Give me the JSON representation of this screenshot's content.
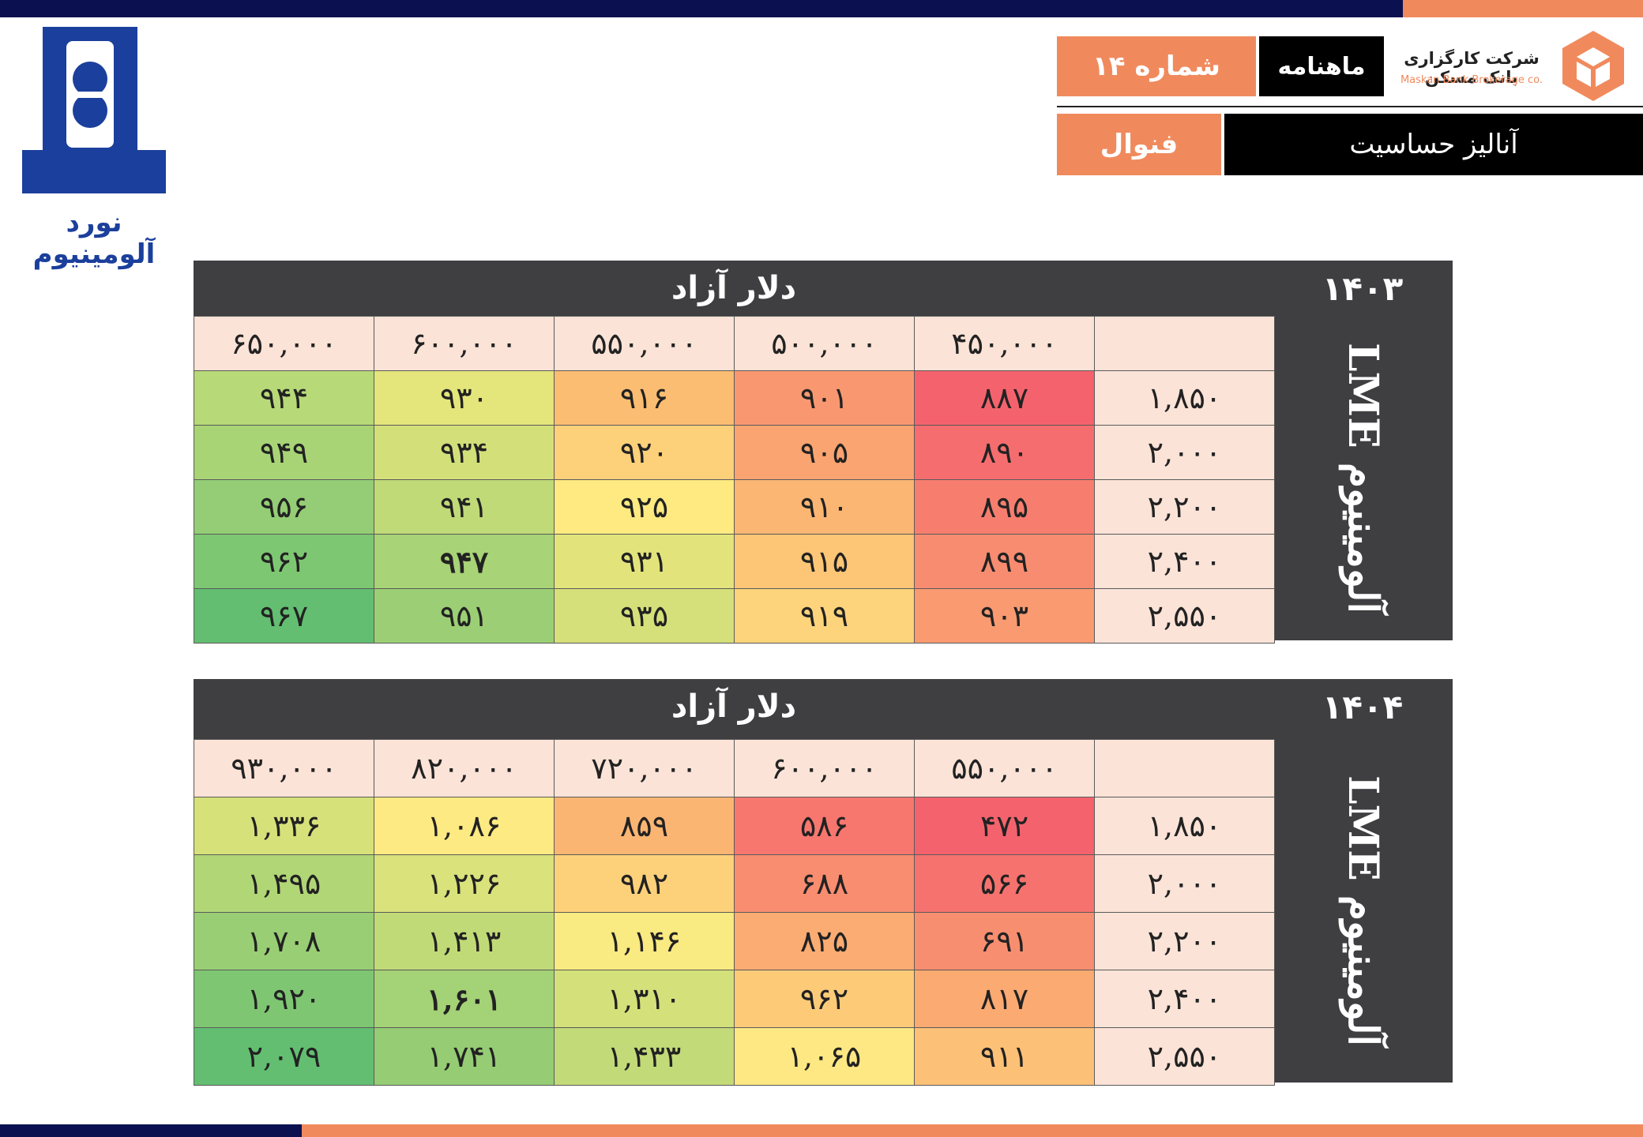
{
  "header": {
    "issue_label": "شماره ۱۴",
    "monthly_label": "ماهنامه",
    "broker_name_fa": "شرکت کارگزاری بانک مسکن",
    "broker_name_en": "Maskan Bank Brokerage co.",
    "symbol_label": "فنوال",
    "title": "آنالیز حساسیت"
  },
  "company": {
    "logo_text": "نورد آلومینیوم"
  },
  "colors": {
    "navy": "#0b1150",
    "orange": "#f08a5d",
    "panel": "#3f3e40",
    "header_cell": "#fbe3d7"
  },
  "tables": [
    {
      "year": "۱۴۰۳",
      "header": "دلار آزاد",
      "side_label": "آلومینیوم LME",
      "columns": [
        "۴۵۰,۰۰۰",
        "۵۰۰,۰۰۰",
        "۵۵۰,۰۰۰",
        "۶۰۰,۰۰۰",
        "۶۵۰,۰۰۰"
      ],
      "rows": [
        {
          "label": "۱,۸۵۰",
          "cells": [
            "۸۸۷",
            "۹۰۱",
            "۹۱۶",
            "۹۳۰",
            "۹۴۴"
          ],
          "colors": [
            "#f4636d",
            "#f99870",
            "#fbbd72",
            "#e4e57a",
            "#b7d977"
          ]
        },
        {
          "label": "۲,۰۰۰",
          "cells": [
            "۸۹۰",
            "۹۰۵",
            "۹۲۰",
            "۹۳۴",
            "۹۴۹"
          ],
          "colors": [
            "#f56d6e",
            "#faa471",
            "#fdd07a",
            "#d3e07a",
            "#a8d476"
          ]
        },
        {
          "label": "۲,۲۰۰",
          "cells": [
            "۸۹۵",
            "۹۱۰",
            "۹۲۵",
            "۹۴۱",
            "۹۵۶"
          ],
          "colors": [
            "#f77e6f",
            "#fbb673",
            "#feea81",
            "#c0da78",
            "#94cd75"
          ]
        },
        {
          "label": "۲,۴۰۰",
          "cells": [
            "۸۹۹",
            "۹۱۵",
            "۹۳۱",
            "۹۴۷",
            "۹۶۲"
          ],
          "colors": [
            "#f88c70",
            "#fcc676",
            "#e2e47b",
            "#a8d376",
            "#7ec772"
          ]
        },
        {
          "label": "۲,۵۵۰",
          "cells": [
            "۹۰۳",
            "۹۱۹",
            "۹۳۵",
            "۹۵۱",
            "۹۶۷"
          ],
          "colors": [
            "#f99a71",
            "#fdd47b",
            "#d5e07a",
            "#9ccf75",
            "#63be71"
          ]
        }
      ],
      "bold": [
        [
          3,
          3
        ]
      ]
    },
    {
      "year": "۱۴۰۴",
      "header": "دلار آزاد",
      "side_label": "آلومینیوم LME",
      "columns": [
        "۵۵۰,۰۰۰",
        "۶۰۰,۰۰۰",
        "۷۲۰,۰۰۰",
        "۸۲۰,۰۰۰",
        "۹۳۰,۰۰۰"
      ],
      "rows": [
        {
          "label": "۱,۸۵۰",
          "cells": [
            "۴۷۲",
            "۵۸۶",
            "۸۵۹",
            "۱,۰۸۶",
            "۱,۳۳۶"
          ],
          "colors": [
            "#f4636d",
            "#f7776f",
            "#fbb573",
            "#feea83",
            "#d7e17a"
          ]
        },
        {
          "label": "۲,۰۰۰",
          "cells": [
            "۵۶۶",
            "۶۸۸",
            "۹۸۲",
            "۱,۲۲۶",
            "۱,۴۹۵"
          ],
          "colors": [
            "#f6726e",
            "#f98d70",
            "#fdd17a",
            "#d9e27b",
            "#b1d676"
          ]
        },
        {
          "label": "۲,۲۰۰",
          "cells": [
            "۶۹۱",
            "۸۲۵",
            "۱,۱۴۶",
            "۱,۴۱۳",
            "۱,۷۰۸"
          ],
          "colors": [
            "#f88e70",
            "#fbac72",
            "#f9ea81",
            "#c1da78",
            "#99ce75"
          ]
        },
        {
          "label": "۲,۴۰۰",
          "cells": [
            "۸۱۷",
            "۹۶۲",
            "۱,۳۱۰",
            "۱,۶۰۱",
            "۱,۹۲۰"
          ],
          "colors": [
            "#fbaa72",
            "#fdcb78",
            "#d4e07a",
            "#a4d276",
            "#7fc673"
          ]
        },
        {
          "label": "۲,۵۵۰",
          "cells": [
            "۹۱۱",
            "۱,۰۶۵",
            "۱,۴۳۳",
            "۱,۷۴۱",
            "۲,۰۷۹"
          ],
          "colors": [
            "#fcc176",
            "#fee883",
            "#c3da78",
            "#95cc74",
            "#63be71"
          ]
        }
      ],
      "bold": [
        [
          3,
          3
        ]
      ]
    }
  ]
}
